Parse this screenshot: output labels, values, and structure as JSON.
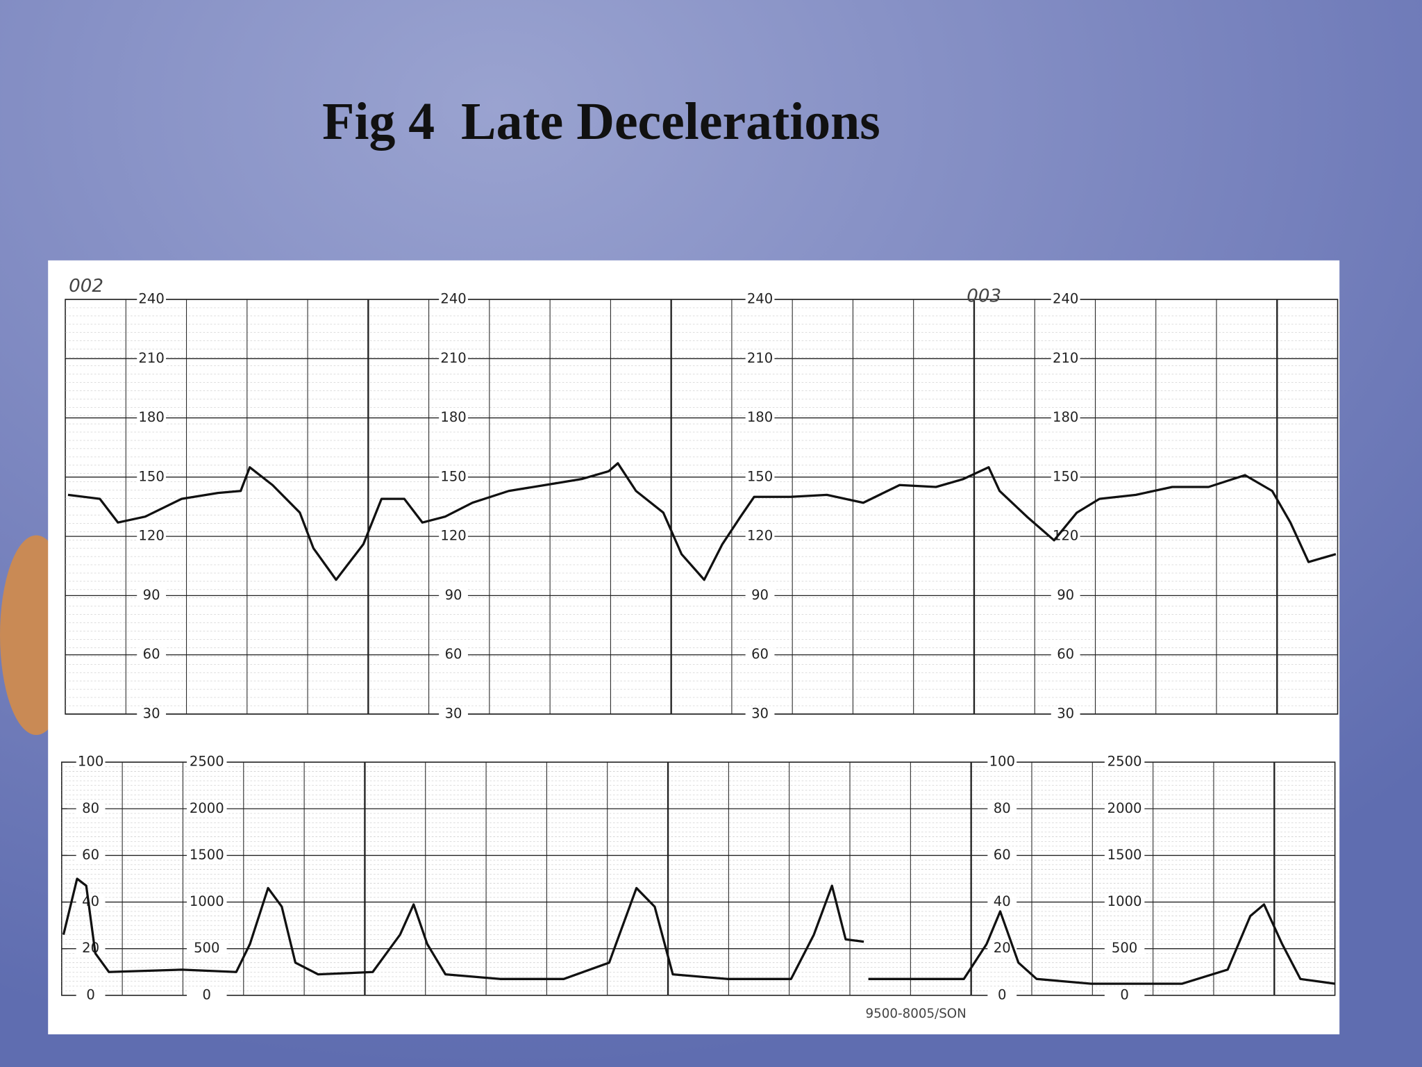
{
  "title": "Fig 4  Late Decelerations",
  "chart_data": [
    {
      "type": "line",
      "annotations": [
        "002",
        "003"
      ],
      "x": [
        3,
        38,
        58,
        88,
        128,
        168,
        193,
        203,
        228,
        258,
        273,
        298,
        328,
        348,
        373,
        393,
        418,
        448,
        488,
        528,
        568,
        598,
        608,
        628,
        658,
        678,
        703,
        723,
        743,
        758,
        798,
        838,
        878,
        918,
        958,
        988,
        1016,
        1028,
        1058,
        1088,
        1113,
        1138,
        1178,
        1218,
        1258,
        1298,
        1328,
        1348,
        1368,
        1398
      ],
      "series": [
        {
          "color": "#111111",
          "values": [
            141,
            139,
            127,
            130,
            139,
            142,
            143,
            155,
            146,
            132,
            114,
            98,
            116,
            139,
            139,
            127,
            130,
            137,
            143,
            146,
            149,
            153,
            157,
            143,
            132,
            111,
            98,
            116,
            130,
            140,
            140,
            141,
            137,
            146,
            145,
            149,
            155,
            143,
            130,
            118,
            132,
            139,
            141,
            145,
            145,
            151,
            143,
            127,
            107,
            111
          ]
        }
      ],
      "xlim": [
        0,
        1400
      ],
      "ylim": [
        30,
        240
      ],
      "yticks": [
        30,
        60,
        90,
        120,
        150,
        180,
        210,
        240
      ],
      "grid": true
    },
    {
      "type": "line",
      "annotations": [
        "9500-8005/SON"
      ],
      "x": [
        2,
        17,
        27,
        37,
        52,
        132,
        192,
        207,
        227,
        242,
        257,
        282,
        342,
        372,
        387,
        402,
        422,
        482,
        552,
        602,
        632,
        652,
        672,
        732,
        802,
        827,
        847,
        862,
        882,
        884,
        887,
        932,
        992,
        1017,
        1032,
        1052,
        1072,
        1132,
        1232,
        1282,
        1307,
        1322,
        1342,
        1362,
        1400
      ],
      "series": [
        {
          "color": "#111111",
          "values": [
            26,
            50,
            47,
            18,
            10,
            11,
            10,
            22,
            46,
            38,
            14,
            9,
            10,
            26,
            39,
            22,
            9,
            7,
            7,
            14,
            46,
            38,
            9,
            7,
            7,
            26,
            47,
            24,
            23,
            null,
            7,
            7,
            7,
            22,
            36,
            14,
            7,
            5,
            5,
            11,
            34,
            39,
            22,
            7,
            5
          ]
        }
      ],
      "xlim": [
        0,
        1400
      ],
      "ylim": [
        0,
        100
      ],
      "yticks": [
        0,
        20,
        40,
        60,
        80,
        100
      ],
      "y2lim": [
        0,
        2500
      ],
      "y2ticks": [
        0,
        500,
        1000,
        1500,
        2000,
        2500
      ],
      "grid": true
    }
  ]
}
